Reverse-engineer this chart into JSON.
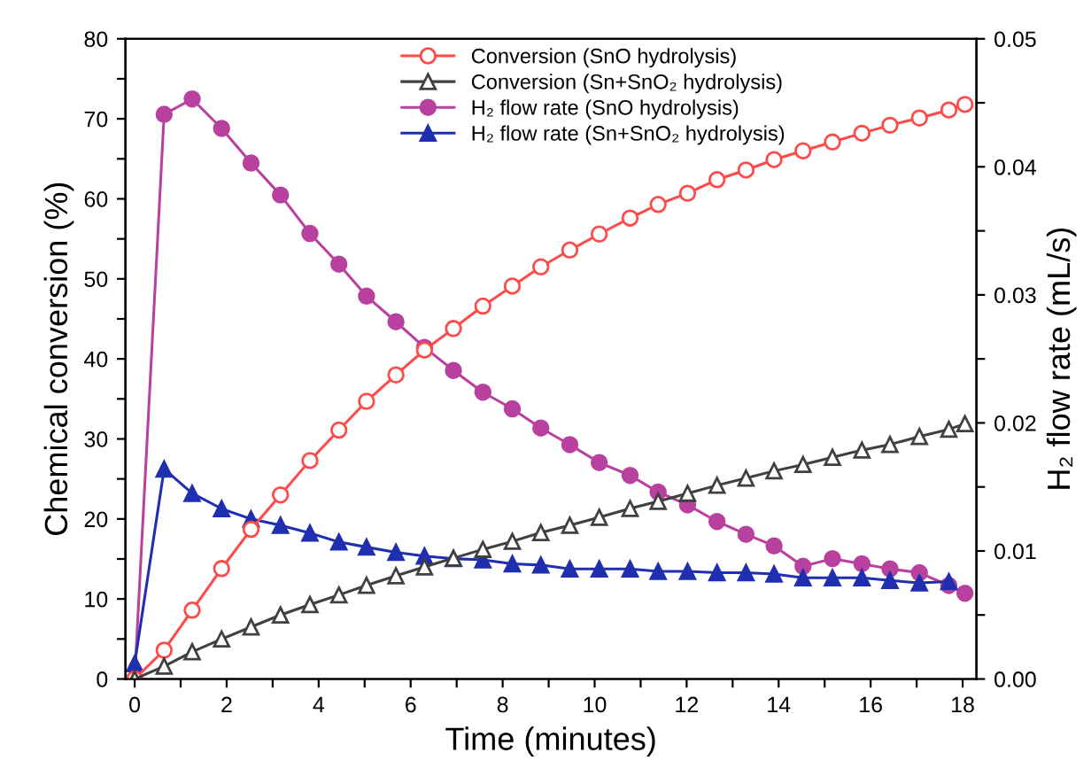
{
  "chart_data": {
    "type": "line",
    "xlabel": "Time (minutes)",
    "ylabel": "Chemical conversion (%)",
    "y2label": "H₂ flow rate (mL/s)",
    "x": [
      0,
      0.64,
      1.25,
      1.89,
      2.53,
      3.17,
      3.81,
      4.44,
      5.04,
      5.68,
      6.3,
      6.93,
      7.57,
      8.21,
      8.83,
      9.46,
      10.1,
      10.77,
      11.38,
      12.02,
      12.66,
      13.29,
      13.9,
      14.53,
      15.17,
      15.81,
      16.42,
      17.06,
      17.7,
      18.05
    ],
    "xlim": [
      -0.2,
      18.3
    ],
    "ylim": [
      0,
      80
    ],
    "y2lim": [
      0,
      0.05
    ],
    "xticks": [
      0,
      {
        "value": 1,
        "label": null
      },
      2,
      {
        "value": 3,
        "label": null
      },
      4,
      {
        "value": 5,
        "label": null
      },
      6,
      {
        "value": 7,
        "label": null
      },
      8,
      {
        "value": 9,
        "label": null
      },
      10,
      {
        "value": 11,
        "label": null
      },
      12,
      {
        "value": 13,
        "label": null
      },
      14,
      {
        "value": 15,
        "label": null
      },
      16,
      {
        "value": 17,
        "label": null
      },
      18
    ],
    "yticks": [
      0,
      {
        "value": 5,
        "label": null
      },
      10,
      {
        "value": 15,
        "label": null
      },
      20,
      {
        "value": 25,
        "label": null
      },
      30,
      {
        "value": 35,
        "label": null
      },
      40,
      {
        "value": 45,
        "label": null
      },
      50,
      {
        "value": 55,
        "label": null
      },
      60,
      {
        "value": 65,
        "label": null
      },
      70,
      {
        "value": 75,
        "label": null
      },
      80
    ],
    "y2ticks": [
      {
        "value": 0,
        "label": "0.00"
      },
      {
        "value": 0.005,
        "label": null
      },
      {
        "value": 0.01,
        "label": "0.01"
      },
      {
        "value": 0.015,
        "label": null
      },
      {
        "value": 0.02,
        "label": "0.02"
      },
      {
        "value": 0.025,
        "label": null
      },
      {
        "value": 0.03,
        "label": "0.03"
      },
      {
        "value": 0.035,
        "label": null
      },
      {
        "value": 0.04,
        "label": "0.04"
      },
      {
        "value": 0.045,
        "label": null
      },
      {
        "value": 0.05,
        "label": "0.05"
      }
    ],
    "legend": "top",
    "grid": false,
    "series": [
      {
        "name": "Conversion (SnO hydrolysis)",
        "color": "#ff4a4a",
        "marker": "circle",
        "values": [
          0,
          3.6,
          8.6,
          13.8,
          18.7,
          23.0,
          27.3,
          31.1,
          34.7,
          38.0,
          41.1,
          43.8,
          46.6,
          49.1,
          51.5,
          53.6,
          55.6,
          57.6,
          59.3,
          60.7,
          62.4,
          63.6,
          64.9,
          66.0,
          67.1,
          68.2,
          69.2,
          70.1,
          71.1,
          71.8
        ]
      },
      {
        "name": "Conversion (Sn+SnO₂ hydrolysis)",
        "color": "#404040",
        "marker": "triangle",
        "values": [
          0,
          1.6,
          3.4,
          5.0,
          6.5,
          8.0,
          9.3,
          10.5,
          11.7,
          12.9,
          14.0,
          15.1,
          16.2,
          17.2,
          18.3,
          19.2,
          20.2,
          21.3,
          22.2,
          23.2,
          24.2,
          25.1,
          26.0,
          26.8,
          27.7,
          28.6,
          29.3,
          30.3,
          31.2,
          31.9
        ]
      },
      {
        "name": "H₂ flow rate (SnO hydrolysis)",
        "color": "#b8419f",
        "marker": "circle",
        "axis": "y2",
        "values": [
          0,
          0.0441,
          0.0453,
          0.043,
          0.0403,
          0.0378,
          0.0348,
          0.0324,
          0.0299,
          0.0279,
          0.0259,
          0.0241,
          0.0224,
          0.0211,
          0.0196,
          0.0183,
          0.0169,
          0.0159,
          0.0146,
          0.0136,
          0.0123,
          0.0113,
          0.0104,
          0.0088,
          0.0094,
          0.009,
          0.0086,
          0.0083,
          0.0073,
          0.0067
        ]
      },
      {
        "name": "H₂ flow rate (Sn+SnO₂ hydrolysis)",
        "color": "#1f2fb0",
        "marker": "triangle",
        "axis": "y2",
        "values": [
          0.0012,
          0.0164,
          0.0145,
          0.0133,
          0.0125,
          0.012,
          0.0114,
          0.0107,
          0.0103,
          0.0099,
          0.0096,
          0.0094,
          0.0093,
          0.009,
          0.0089,
          0.0086,
          0.0086,
          0.0086,
          0.0084,
          0.0084,
          0.0083,
          0.0083,
          0.0082,
          0.0079,
          0.0079,
          0.0079,
          0.0077,
          0.0075,
          0.0076,
          null
        ]
      }
    ]
  }
}
